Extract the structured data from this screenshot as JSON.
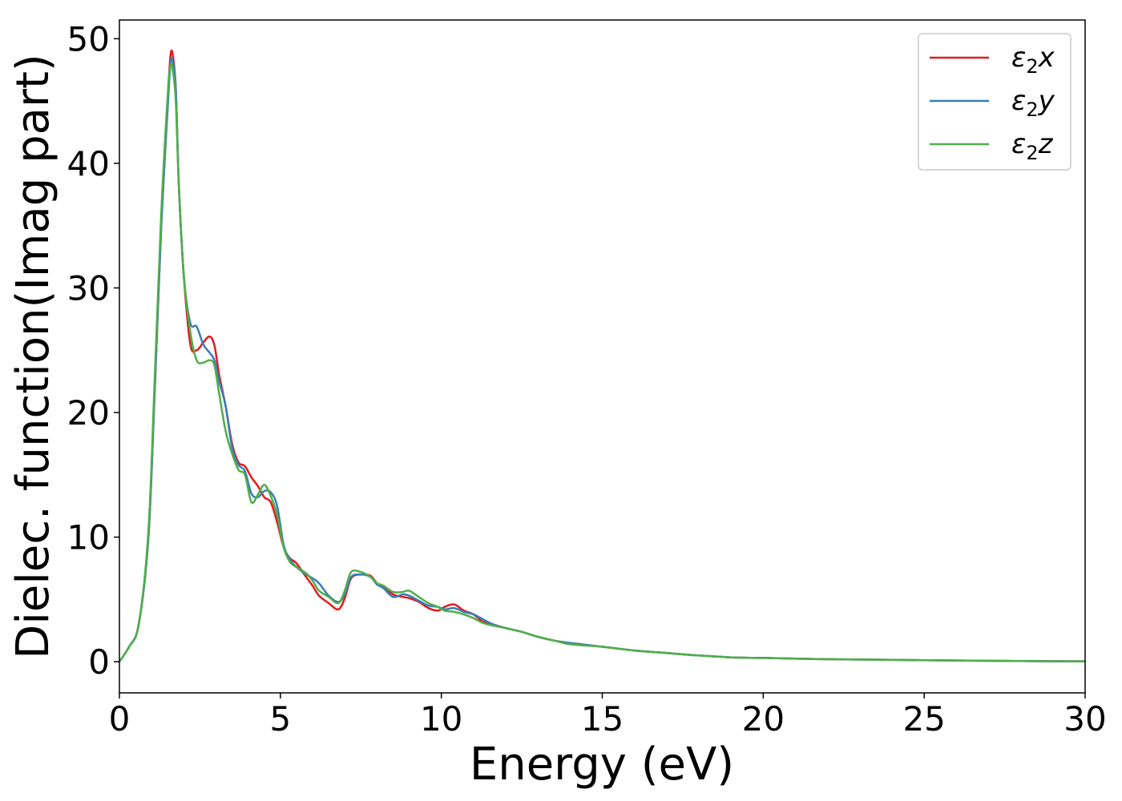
{
  "chart_data": {
    "type": "line",
    "xlabel": "Energy (eV)",
    "ylabel": "Dielec. function(Imag part)",
    "xlim": [
      0,
      30
    ],
    "ylim": [
      -2.5,
      51.5
    ],
    "xticks": [
      0,
      5,
      10,
      15,
      20,
      25,
      30
    ],
    "yticks": [
      0,
      10,
      20,
      30,
      40,
      50
    ],
    "grid": false,
    "legend_position": "top-right",
    "series": [
      {
        "name": "ε₂x",
        "legend_base": "ε",
        "legend_sub": "2",
        "legend_var": "x",
        "color": "#e41a1c",
        "x": [
          0,
          0.3,
          0.6,
          0.9,
          1.1,
          1.3,
          1.5,
          1.58,
          1.65,
          1.75,
          1.85,
          2.0,
          2.2,
          2.4,
          2.6,
          2.8,
          2.95,
          3.1,
          3.3,
          3.5,
          3.7,
          3.9,
          4.1,
          4.3,
          4.5,
          4.7,
          4.9,
          5.1,
          5.3,
          5.5,
          5.8,
          6.0,
          6.2,
          6.5,
          6.8,
          7.0,
          7.2,
          7.5,
          7.8,
          8.0,
          8.2,
          8.5,
          8.8,
          9.0,
          9.3,
          9.6,
          9.9,
          10.1,
          10.4,
          10.7,
          11.0,
          11.3,
          11.6,
          12.0,
          12.5,
          13.0,
          13.5,
          14.0,
          15.0,
          16.0,
          17.0,
          18.0,
          19.0,
          20.0,
          22.0,
          24.0,
          26.0,
          28.0,
          30.0
        ],
        "y": [
          0,
          1.2,
          3.0,
          10,
          22,
          35,
          45,
          48.5,
          48.8,
          46,
          38,
          31,
          25.5,
          25.0,
          25.6,
          26.1,
          25.4,
          23,
          20.5,
          17.5,
          16,
          15.7,
          14.8,
          14.1,
          13.2,
          12.8,
          11.2,
          9.2,
          8.3,
          7.9,
          6.8,
          6.1,
          5.3,
          4.7,
          4.2,
          5.1,
          6.7,
          7.0,
          6.9,
          6.3,
          6.0,
          5.4,
          5.2,
          5.1,
          4.8,
          4.3,
          4.1,
          4.4,
          4.6,
          4.1,
          3.8,
          3.2,
          3.0,
          2.7,
          2.4,
          2.0,
          1.7,
          1.5,
          1.2,
          0.9,
          0.7,
          0.5,
          0.35,
          0.3,
          0.2,
          0.15,
          0.1,
          0.05,
          0.03
        ]
      },
      {
        "name": "ε₂y",
        "legend_base": "ε",
        "legend_sub": "2",
        "legend_var": "y",
        "color": "#377eb8",
        "x": [
          0,
          0.3,
          0.6,
          0.9,
          1.1,
          1.3,
          1.5,
          1.58,
          1.65,
          1.75,
          1.85,
          2.0,
          2.2,
          2.4,
          2.6,
          2.8,
          2.95,
          3.1,
          3.3,
          3.5,
          3.7,
          3.9,
          4.1,
          4.3,
          4.5,
          4.7,
          4.9,
          5.1,
          5.3,
          5.5,
          5.8,
          6.0,
          6.2,
          6.5,
          6.8,
          7.0,
          7.2,
          7.5,
          7.8,
          8.0,
          8.2,
          8.5,
          8.8,
          9.0,
          9.3,
          9.6,
          9.9,
          10.1,
          10.4,
          10.7,
          11.0,
          11.3,
          11.6,
          12.0,
          12.5,
          13.0,
          13.5,
          14.0,
          15.0,
          16.0,
          17.0,
          18.0,
          19.0,
          20.0,
          22.0,
          24.0,
          26.0,
          28.0,
          30.0
        ],
        "y": [
          0,
          1.2,
          3.0,
          10,
          22,
          35,
          44.5,
          47.8,
          48.3,
          46,
          38,
          31,
          27.2,
          26.9,
          25.5,
          24.8,
          24.2,
          22.5,
          20.5,
          17.2,
          15.8,
          15.3,
          13.5,
          13.2,
          13.7,
          13.6,
          12.5,
          9.4,
          8.2,
          7.6,
          7.0,
          6.7,
          6.3,
          5.3,
          4.8,
          5.4,
          6.8,
          7.0,
          6.8,
          6.2,
          5.9,
          5.2,
          5.4,
          5.3,
          4.9,
          4.5,
          4.4,
          4.2,
          4.3,
          4.0,
          3.8,
          3.4,
          3.0,
          2.7,
          2.4,
          2.0,
          1.7,
          1.5,
          1.2,
          0.9,
          0.7,
          0.5,
          0.35,
          0.3,
          0.2,
          0.15,
          0.1,
          0.05,
          0.03
        ]
      },
      {
        "name": "ε₂z",
        "legend_base": "ε",
        "legend_sub": "2",
        "legend_var": "z",
        "color": "#4daf4a",
        "x": [
          0,
          0.3,
          0.6,
          0.9,
          1.1,
          1.3,
          1.5,
          1.58,
          1.65,
          1.75,
          1.85,
          2.0,
          2.2,
          2.4,
          2.6,
          2.8,
          2.95,
          3.1,
          3.3,
          3.5,
          3.7,
          3.9,
          4.1,
          4.3,
          4.5,
          4.7,
          4.9,
          5.1,
          5.3,
          5.5,
          5.8,
          6.0,
          6.2,
          6.5,
          6.8,
          7.0,
          7.2,
          7.5,
          7.8,
          8.0,
          8.2,
          8.5,
          8.8,
          9.0,
          9.3,
          9.6,
          9.9,
          10.1,
          10.4,
          10.7,
          11.0,
          11.3,
          11.6,
          12.0,
          12.5,
          13.0,
          13.5,
          14.0,
          15.0,
          16.0,
          17.0,
          18.0,
          19.0,
          20.0,
          22.0,
          24.0,
          26.0,
          28.0,
          30.0
        ],
        "y": [
          0,
          1.2,
          3.0,
          10.5,
          23,
          36,
          45.5,
          47.8,
          47.6,
          45,
          38,
          31,
          26.5,
          24.2,
          24.0,
          24.2,
          23.8,
          21.5,
          18.5,
          16.7,
          15.4,
          15.0,
          12.8,
          13.4,
          14.2,
          13.3,
          11.8,
          9.2,
          8.0,
          7.6,
          7.1,
          6.5,
          5.7,
          5.2,
          4.7,
          5.7,
          7.2,
          7.2,
          6.8,
          6.3,
          6.1,
          5.6,
          5.6,
          5.7,
          5.2,
          4.7,
          4.4,
          4.1,
          4.0,
          3.8,
          3.5,
          3.1,
          2.9,
          2.7,
          2.4,
          2.0,
          1.7,
          1.4,
          1.2,
          0.9,
          0.7,
          0.5,
          0.35,
          0.3,
          0.2,
          0.15,
          0.1,
          0.05,
          0.03
        ]
      }
    ]
  }
}
